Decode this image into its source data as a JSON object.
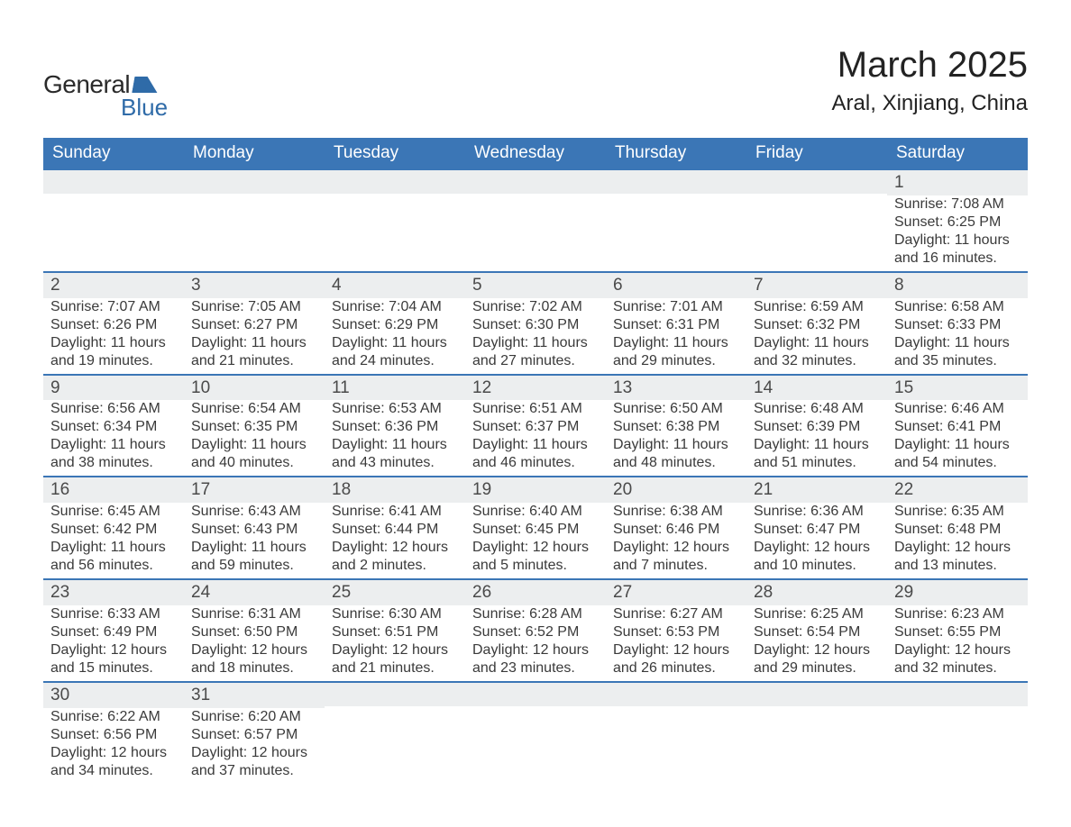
{
  "brand": {
    "name_a": "General",
    "name_b": "Blue"
  },
  "title": "March 2025",
  "location": "Aral, Xinjiang, China",
  "weekday_labels": [
    "Sunday",
    "Monday",
    "Tuesday",
    "Wednesday",
    "Thursday",
    "Friday",
    "Saturday"
  ],
  "colors": {
    "header_bg": "#3b76b6",
    "row_divider": "#3b76b6",
    "daynum_bg": "#eceeef",
    "text": "#3a3a3a",
    "brand_blue": "#2f6ba8"
  },
  "typography": {
    "title_fontsize": 40,
    "location_fontsize": 24,
    "weekday_fontsize": 19,
    "daynum_fontsize": 19,
    "body_fontsize": 16
  },
  "weeks": [
    [
      {
        "day": "",
        "sunrise": "",
        "sunset": "",
        "daylight": ""
      },
      {
        "day": "",
        "sunrise": "",
        "sunset": "",
        "daylight": ""
      },
      {
        "day": "",
        "sunrise": "",
        "sunset": "",
        "daylight": ""
      },
      {
        "day": "",
        "sunrise": "",
        "sunset": "",
        "daylight": ""
      },
      {
        "day": "",
        "sunrise": "",
        "sunset": "",
        "daylight": ""
      },
      {
        "day": "",
        "sunrise": "",
        "sunset": "",
        "daylight": ""
      },
      {
        "day": "1",
        "sunrise": "Sunrise: 7:08 AM",
        "sunset": "Sunset: 6:25 PM",
        "daylight": "Daylight: 11 hours and 16 minutes."
      }
    ],
    [
      {
        "day": "2",
        "sunrise": "Sunrise: 7:07 AM",
        "sunset": "Sunset: 6:26 PM",
        "daylight": "Daylight: 11 hours and 19 minutes."
      },
      {
        "day": "3",
        "sunrise": "Sunrise: 7:05 AM",
        "sunset": "Sunset: 6:27 PM",
        "daylight": "Daylight: 11 hours and 21 minutes."
      },
      {
        "day": "4",
        "sunrise": "Sunrise: 7:04 AM",
        "sunset": "Sunset: 6:29 PM",
        "daylight": "Daylight: 11 hours and 24 minutes."
      },
      {
        "day": "5",
        "sunrise": "Sunrise: 7:02 AM",
        "sunset": "Sunset: 6:30 PM",
        "daylight": "Daylight: 11 hours and 27 minutes."
      },
      {
        "day": "6",
        "sunrise": "Sunrise: 7:01 AM",
        "sunset": "Sunset: 6:31 PM",
        "daylight": "Daylight: 11 hours and 29 minutes."
      },
      {
        "day": "7",
        "sunrise": "Sunrise: 6:59 AM",
        "sunset": "Sunset: 6:32 PM",
        "daylight": "Daylight: 11 hours and 32 minutes."
      },
      {
        "day": "8",
        "sunrise": "Sunrise: 6:58 AM",
        "sunset": "Sunset: 6:33 PM",
        "daylight": "Daylight: 11 hours and 35 minutes."
      }
    ],
    [
      {
        "day": "9",
        "sunrise": "Sunrise: 6:56 AM",
        "sunset": "Sunset: 6:34 PM",
        "daylight": "Daylight: 11 hours and 38 minutes."
      },
      {
        "day": "10",
        "sunrise": "Sunrise: 6:54 AM",
        "sunset": "Sunset: 6:35 PM",
        "daylight": "Daylight: 11 hours and 40 minutes."
      },
      {
        "day": "11",
        "sunrise": "Sunrise: 6:53 AM",
        "sunset": "Sunset: 6:36 PM",
        "daylight": "Daylight: 11 hours and 43 minutes."
      },
      {
        "day": "12",
        "sunrise": "Sunrise: 6:51 AM",
        "sunset": "Sunset: 6:37 PM",
        "daylight": "Daylight: 11 hours and 46 minutes."
      },
      {
        "day": "13",
        "sunrise": "Sunrise: 6:50 AM",
        "sunset": "Sunset: 6:38 PM",
        "daylight": "Daylight: 11 hours and 48 minutes."
      },
      {
        "day": "14",
        "sunrise": "Sunrise: 6:48 AM",
        "sunset": "Sunset: 6:39 PM",
        "daylight": "Daylight: 11 hours and 51 minutes."
      },
      {
        "day": "15",
        "sunrise": "Sunrise: 6:46 AM",
        "sunset": "Sunset: 6:41 PM",
        "daylight": "Daylight: 11 hours and 54 minutes."
      }
    ],
    [
      {
        "day": "16",
        "sunrise": "Sunrise: 6:45 AM",
        "sunset": "Sunset: 6:42 PM",
        "daylight": "Daylight: 11 hours and 56 minutes."
      },
      {
        "day": "17",
        "sunrise": "Sunrise: 6:43 AM",
        "sunset": "Sunset: 6:43 PM",
        "daylight": "Daylight: 11 hours and 59 minutes."
      },
      {
        "day": "18",
        "sunrise": "Sunrise: 6:41 AM",
        "sunset": "Sunset: 6:44 PM",
        "daylight": "Daylight: 12 hours and 2 minutes."
      },
      {
        "day": "19",
        "sunrise": "Sunrise: 6:40 AM",
        "sunset": "Sunset: 6:45 PM",
        "daylight": "Daylight: 12 hours and 5 minutes."
      },
      {
        "day": "20",
        "sunrise": "Sunrise: 6:38 AM",
        "sunset": "Sunset: 6:46 PM",
        "daylight": "Daylight: 12 hours and 7 minutes."
      },
      {
        "day": "21",
        "sunrise": "Sunrise: 6:36 AM",
        "sunset": "Sunset: 6:47 PM",
        "daylight": "Daylight: 12 hours and 10 minutes."
      },
      {
        "day": "22",
        "sunrise": "Sunrise: 6:35 AM",
        "sunset": "Sunset: 6:48 PM",
        "daylight": "Daylight: 12 hours and 13 minutes."
      }
    ],
    [
      {
        "day": "23",
        "sunrise": "Sunrise: 6:33 AM",
        "sunset": "Sunset: 6:49 PM",
        "daylight": "Daylight: 12 hours and 15 minutes."
      },
      {
        "day": "24",
        "sunrise": "Sunrise: 6:31 AM",
        "sunset": "Sunset: 6:50 PM",
        "daylight": "Daylight: 12 hours and 18 minutes."
      },
      {
        "day": "25",
        "sunrise": "Sunrise: 6:30 AM",
        "sunset": "Sunset: 6:51 PM",
        "daylight": "Daylight: 12 hours and 21 minutes."
      },
      {
        "day": "26",
        "sunrise": "Sunrise: 6:28 AM",
        "sunset": "Sunset: 6:52 PM",
        "daylight": "Daylight: 12 hours and 23 minutes."
      },
      {
        "day": "27",
        "sunrise": "Sunrise: 6:27 AM",
        "sunset": "Sunset: 6:53 PM",
        "daylight": "Daylight: 12 hours and 26 minutes."
      },
      {
        "day": "28",
        "sunrise": "Sunrise: 6:25 AM",
        "sunset": "Sunset: 6:54 PM",
        "daylight": "Daylight: 12 hours and 29 minutes."
      },
      {
        "day": "29",
        "sunrise": "Sunrise: 6:23 AM",
        "sunset": "Sunset: 6:55 PM",
        "daylight": "Daylight: 12 hours and 32 minutes."
      }
    ],
    [
      {
        "day": "30",
        "sunrise": "Sunrise: 6:22 AM",
        "sunset": "Sunset: 6:56 PM",
        "daylight": "Daylight: 12 hours and 34 minutes."
      },
      {
        "day": "31",
        "sunrise": "Sunrise: 6:20 AM",
        "sunset": "Sunset: 6:57 PM",
        "daylight": "Daylight: 12 hours and 37 minutes."
      },
      {
        "day": "",
        "sunrise": "",
        "sunset": "",
        "daylight": ""
      },
      {
        "day": "",
        "sunrise": "",
        "sunset": "",
        "daylight": ""
      },
      {
        "day": "",
        "sunrise": "",
        "sunset": "",
        "daylight": ""
      },
      {
        "day": "",
        "sunrise": "",
        "sunset": "",
        "daylight": ""
      },
      {
        "day": "",
        "sunrise": "",
        "sunset": "",
        "daylight": ""
      }
    ]
  ]
}
